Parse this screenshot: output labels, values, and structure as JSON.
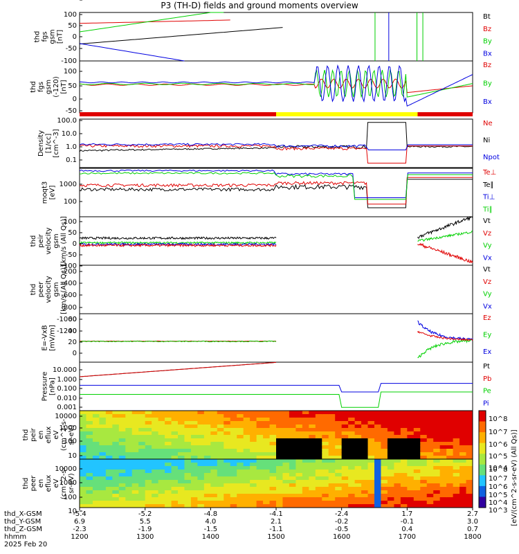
{
  "title": "P3 (TH-D) fields and ground moments overview",
  "colors": {
    "black": "#000000",
    "red": "#e00000",
    "green": "#00d000",
    "blue": "#0000e0",
    "yellow": "#ffff00"
  },
  "chart_data": {
    "type": "multi-panel time series",
    "time_axis": {
      "rows": [
        {
          "label": "thd_X-GSM",
          "values": [
            "-5.4",
            "-5.2",
            "-4.8",
            "-4.1",
            "-2.4",
            "1.7",
            "2.7"
          ]
        },
        {
          "label": "thd_Y-GSM",
          "values": [
            "6.9",
            "5.5",
            "4.0",
            "2.1",
            "-0.2",
            "-0.1",
            "3.0"
          ]
        },
        {
          "label": "thd_Z-GSM",
          "values": [
            "-2.3",
            "-1.9",
            "-1.5",
            "-1.1",
            "-0.5",
            "0.4",
            "0.7"
          ]
        },
        {
          "label": "hhmm",
          "values": [
            "1200",
            "1300",
            "1400",
            "1500",
            "1600",
            "1700",
            "1800"
          ]
        }
      ],
      "date": "2025 Feb 20"
    },
    "bar_segments": [
      {
        "from": "1200",
        "to": "1500",
        "color": "red"
      },
      {
        "from": "1500",
        "to": "1716",
        "color": "yellow"
      },
      {
        "from": "1716",
        "to": "1800",
        "color": "red"
      }
    ],
    "panels": [
      {
        "name": "fgs-gsm-nT",
        "ylabel": [
          "thd",
          "fgs",
          "gsm",
          "[nT]"
        ],
        "ylim": [
          -100,
          100
        ],
        "yticks": [
          "100",
          "50",
          "0",
          "-50",
          "-100"
        ],
        "legend": [
          {
            "t": "Bt",
            "c": "black"
          },
          {
            "t": "Bz",
            "c": "red"
          },
          {
            "t": "By",
            "c": "green"
          },
          {
            "t": "Bx",
            "c": "blue"
          }
        ]
      },
      {
        "name": "fgs-gsm-zoom",
        "ylabel": [
          "thd",
          "fgs",
          "gsm",
          "(-120)",
          "[nT]"
        ],
        "ylim": [
          -130,
          100
        ],
        "yticks": [
          "100",
          "50",
          "0",
          "-50",
          "-100"
        ],
        "legend": [
          {
            "t": "Bz",
            "c": "red"
          },
          {
            "t": "By",
            "c": "green"
          },
          {
            "t": "Bx",
            "c": "blue"
          }
        ]
      },
      {
        "name": "density",
        "ylabel": [
          "Density",
          "[1/cc]",
          "[cm^-3]"
        ],
        "log": true,
        "ylim": [
          0.05,
          100
        ],
        "yticks": [
          "100.0",
          "10.0",
          "1.0",
          "0.1"
        ],
        "legend": [
          {
            "t": "Ne",
            "c": "red"
          },
          {
            "t": "Ni",
            "c": "black"
          },
          {
            "t": "Npot",
            "c": "blue"
          }
        ]
      },
      {
        "name": "temperature",
        "ylabel": [
          "moqt3",
          "[eV]"
        ],
        "log": true,
        "ylim": [
          15,
          3000
        ],
        "yticks": [
          "1000",
          "100"
        ],
        "legend": [
          {
            "t": "Te⊥",
            "c": "red"
          },
          {
            "t": "Te∥",
            "c": "black"
          },
          {
            "t": "Ti⊥",
            "c": "blue"
          },
          {
            "t": "Ti∥",
            "c": "green"
          }
        ]
      },
      {
        "name": "peir-velocity",
        "ylabel": [
          "thd",
          "peir",
          "velocity",
          "gsm",
          "[km/s (All Qs)]"
        ],
        "ylim": [
          -100,
          120
        ],
        "yticks": [
          "100",
          "50",
          "0",
          "-50",
          "-100"
        ],
        "legend": [
          {
            "t": "Vt",
            "c": "black"
          },
          {
            "t": "Vz",
            "c": "red"
          },
          {
            "t": "Vy",
            "c": "green"
          },
          {
            "t": "Vx",
            "c": "blue"
          }
        ]
      },
      {
        "name": "peer-velocity",
        "ylabel": [
          "thd",
          "peer",
          "velocity",
          "gsm",
          "[km/s (All Qs)]"
        ],
        "ylim": [
          -1400,
          0
        ],
        "yticks": [
          "-200",
          "-400",
          "-600",
          "-800",
          "-1000",
          "-1200",
          "-1400"
        ],
        "legend": [
          {
            "t": "Vt",
            "c": "black"
          },
          {
            "t": "Vz",
            "c": "red"
          },
          {
            "t": "Vy",
            "c": "green"
          },
          {
            "t": "Vx",
            "c": "blue"
          }
        ]
      },
      {
        "name": "efield",
        "ylabel": [
          "E=-VxB",
          "[mV/m]"
        ],
        "ylim": [
          -45,
          60
        ],
        "yticks": [
          "60",
          "40",
          "20",
          "0",
          "-20",
          "-40"
        ],
        "legend": [
          {
            "t": "Ez",
            "c": "red"
          },
          {
            "t": "Ey",
            "c": "green"
          },
          {
            "t": "Ex",
            "c": "blue"
          }
        ]
      },
      {
        "name": "pressure",
        "ylabel": [
          "Pressure",
          "[nPa]"
        ],
        "log": true,
        "ylim": [
          0.001,
          25
        ],
        "yticks": [
          "10.000",
          "1.000",
          "0.100",
          "0.010",
          "0.001"
        ],
        "legend": [
          {
            "t": "Pt",
            "c": "black"
          },
          {
            "t": "Pb",
            "c": "red"
          },
          {
            "t": "Pe",
            "c": "green"
          },
          {
            "t": "Pi",
            "c": "blue"
          }
        ]
      },
      {
        "name": "peir-eflux",
        "ylabel": [
          "thd",
          "peir",
          "en",
          "eflux",
          "eV",
          "(cm^2-s-",
          "sr-eV)"
        ],
        "log": true,
        "yticks": [
          "10000",
          "1000",
          "100",
          "10"
        ],
        "spectrogram": true
      },
      {
        "name": "peer-eflux",
        "ylabel": [
          "thd",
          "peer",
          "en",
          "eflux",
          "eV",
          "(cm^2-s-",
          "sr-eV)"
        ],
        "log": true,
        "yticks": [
          "10000",
          "1000",
          "100",
          "10"
        ],
        "spectrogram": true
      }
    ],
    "colorbar": {
      "label": "[eV/(cm^2-s-sr-eV) (All Qs)]",
      "ticks_ion": [
        "10^8",
        "10^7",
        "10^6",
        "10^5",
        "10^4"
      ],
      "ticks_ele": [
        "10^8",
        "10^7",
        "10^6",
        "10^5",
        "10^4",
        "10^3"
      ]
    }
  }
}
